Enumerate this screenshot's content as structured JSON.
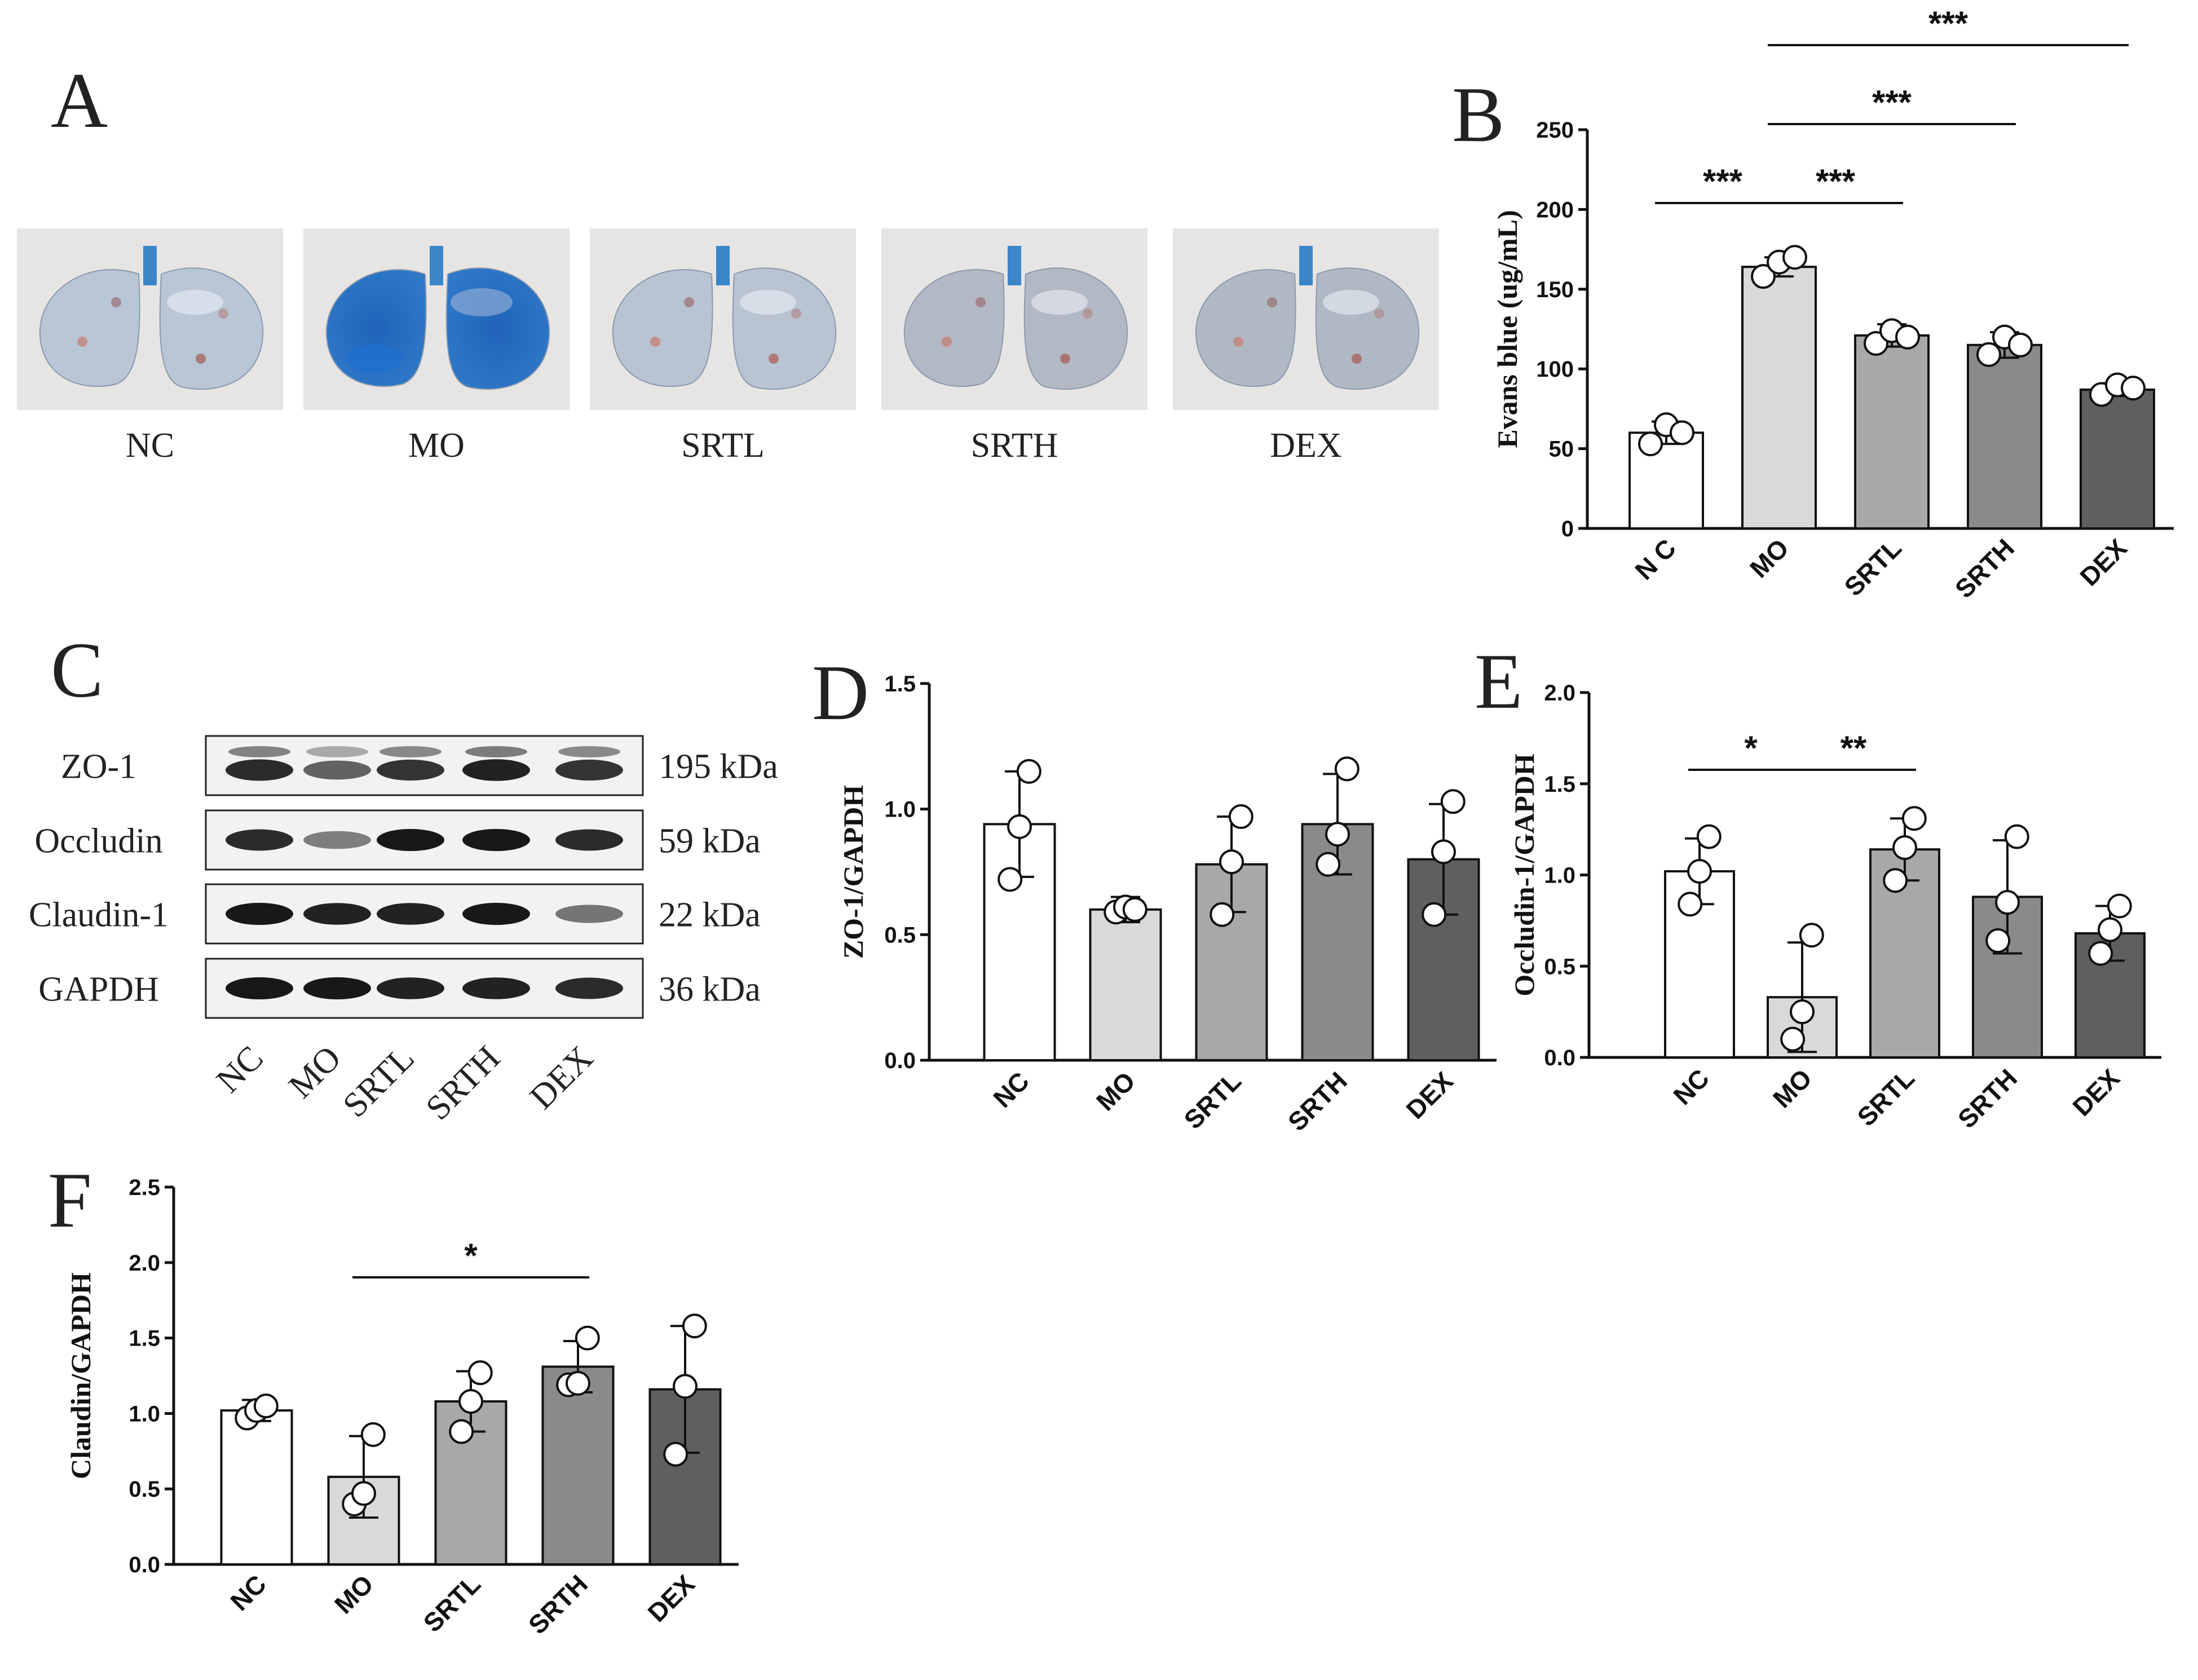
{
  "panels": {
    "A": "A",
    "B": "B",
    "C": "C",
    "D": "D",
    "E": "E",
    "F": "F"
  },
  "colors": {
    "NC": "#ffffff",
    "MO": "#d9d9d9",
    "SRTL": "#a8a8a8",
    "SRTH": "#8a8a8a",
    "DEX": "#5f5f5f"
  },
  "panel_a": {
    "groups": [
      "NC",
      "MO",
      "SRTL",
      "SRTH",
      "DEX"
    ],
    "photo_description_colors": [
      "#b8c6d6",
      "#2f6db0",
      "#b9c4d2",
      "#b3b9c4",
      "#b0b8c4"
    ]
  },
  "western_blot": {
    "proteins": [
      {
        "name": "ZO-1",
        "kda": "195 kDa",
        "intensity": [
          0.85,
          0.55,
          0.8,
          0.9,
          0.8
        ]
      },
      {
        "name": "Occludin",
        "kda": "59 kDa",
        "intensity": [
          0.85,
          0.4,
          0.95,
          0.95,
          0.85
        ]
      },
      {
        "name": "Claudin-1",
        "kda": "22 kDa",
        "intensity": [
          0.95,
          0.9,
          0.9,
          0.95,
          0.45
        ]
      },
      {
        "name": "GAPDH",
        "kda": "36 kDa",
        "intensity": [
          0.95,
          0.95,
          0.9,
          0.9,
          0.85
        ]
      }
    ],
    "lanes": [
      "NC",
      "MO",
      "SRTL",
      "SRTH",
      "DEX"
    ]
  },
  "chart_data": [
    {
      "id": "B",
      "type": "bar",
      "categories": [
        "N C",
        "MO",
        "SRTL",
        "SRTH",
        "DEX"
      ],
      "values": [
        60,
        164,
        121,
        115,
        87
      ],
      "errors": [
        7,
        6,
        7,
        8,
        4
      ],
      "points": [
        [
          53,
          65,
          60
        ],
        [
          158,
          167,
          170
        ],
        [
          116,
          124,
          120
        ],
        [
          109,
          120,
          115
        ],
        [
          84,
          90,
          88
        ]
      ],
      "ylabel": "Evans blue (ug/mL)",
      "ylim": [
        0,
        250
      ],
      "yticks": [
        "0",
        "50",
        "100",
        "150",
        "200",
        "250"
      ],
      "yticks_values": [
        0,
        50,
        100,
        150,
        200,
        250
      ],
      "significance": [
        {
          "from": 0,
          "to": 1,
          "label": "***",
          "level": 0
        },
        {
          "from": 1,
          "to": 2,
          "label": "***",
          "level": 0
        },
        {
          "from": 1,
          "to": 3,
          "label": "***",
          "level": 1
        },
        {
          "from": 1,
          "to": 4,
          "label": "***",
          "level": 2
        }
      ]
    },
    {
      "id": "D",
      "type": "bar",
      "categories": [
        "NC",
        "MO",
        "SRTL",
        "SRTH",
        "DEX"
      ],
      "values": [
        0.94,
        0.6,
        0.78,
        0.94,
        0.8
      ],
      "errors": [
        0.21,
        0.05,
        0.19,
        0.2,
        0.22
      ],
      "points": [
        [
          0.72,
          0.93,
          1.15
        ],
        [
          0.59,
          0.61,
          0.6
        ],
        [
          0.58,
          0.79,
          0.97
        ],
        [
          0.78,
          0.9,
          1.16
        ],
        [
          0.58,
          0.83,
          1.03
        ]
      ],
      "ylabel": "ZO-1/GAPDH",
      "ylim": [
        0,
        1.5
      ],
      "yticks": [
        "0.0",
        "0.5",
        "1.0",
        "1.5"
      ],
      "yticks_values": [
        0,
        0.5,
        1.0,
        1.5
      ],
      "significance": []
    },
    {
      "id": "E",
      "type": "bar",
      "categories": [
        "NC",
        "MO",
        "SRTL",
        "SRTH",
        "DEX"
      ],
      "values": [
        1.02,
        0.33,
        1.14,
        0.88,
        0.68
      ],
      "errors": [
        0.18,
        0.3,
        0.17,
        0.31,
        0.15
      ],
      "points": [
        [
          0.84,
          1.02,
          1.21
        ],
        [
          0.1,
          0.25,
          0.67
        ],
        [
          0.97,
          1.15,
          1.31
        ],
        [
          0.64,
          0.85,
          1.21
        ],
        [
          0.57,
          0.7,
          0.83
        ]
      ],
      "ylabel": "Occludin-1/GAPDH",
      "ylim": [
        0,
        2.0
      ],
      "yticks": [
        "0.0",
        "0.5",
        "1.0",
        "1.5",
        "2.0"
      ],
      "yticks_values": [
        0,
        0.5,
        1.0,
        1.5,
        2.0
      ],
      "significance": [
        {
          "from": 0,
          "to": 1,
          "label": "*",
          "level": 0
        },
        {
          "from": 1,
          "to": 2,
          "label": "**",
          "level": 0
        }
      ]
    },
    {
      "id": "F",
      "type": "bar",
      "categories": [
        "NC",
        "MO",
        "SRTL",
        "SRTH",
        "DEX"
      ],
      "values": [
        1.02,
        0.58,
        1.08,
        1.31,
        1.16
      ],
      "errors": [
        0.07,
        0.27,
        0.2,
        0.17,
        0.42
      ],
      "points": [
        [
          0.97,
          1.02,
          1.05
        ],
        [
          0.4,
          0.47,
          0.86
        ],
        [
          0.88,
          1.08,
          1.27
        ],
        [
          1.19,
          1.2,
          1.5
        ],
        [
          0.73,
          1.18,
          1.58
        ]
      ],
      "ylabel": "Claudin/GAPDH",
      "ylim": [
        0,
        2.5
      ],
      "yticks": [
        "0.0",
        "0.5",
        "1.0",
        "1.5",
        "2.0",
        "2.5"
      ],
      "yticks_values": [
        0,
        0.5,
        1.0,
        1.5,
        2.0,
        2.5
      ],
      "significance": [
        {
          "from": 1,
          "to": 3,
          "label": "*",
          "level": 0
        }
      ]
    }
  ]
}
